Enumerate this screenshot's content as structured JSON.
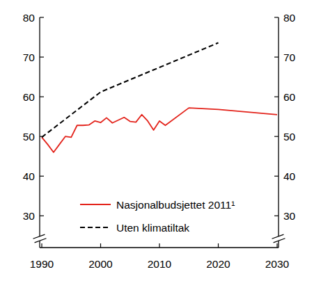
{
  "chart_data": {
    "type": "line",
    "xlim": [
      1990,
      2030
    ],
    "xticks": [
      1990,
      2000,
      2010,
      2020,
      2030
    ],
    "ylim": [
      22,
      80
    ],
    "yticks": [
      30,
      40,
      50,
      60,
      70,
      80
    ],
    "y2lim": [
      22,
      80
    ],
    "y2ticks": [
      30,
      40,
      50,
      60,
      70,
      80
    ],
    "legend": "lower left",
    "series": [
      {
        "name": "Nasjonalbudsjettet 2011¹",
        "color": "#e3231b",
        "line_style": "solid",
        "x": [
          1990,
          1991,
          1992,
          1993,
          1994,
          1995,
          1996,
          1997,
          1998,
          1999,
          2000,
          2001,
          2002,
          2003,
          2004,
          2005,
          2006,
          2007,
          2008,
          2009,
          2010,
          2011,
          2015,
          2020,
          2030
        ],
        "values": [
          49.8,
          48,
          46,
          48,
          50,
          49.8,
          52.8,
          52.8,
          52.9,
          53.9,
          53.5,
          54.7,
          53.4,
          54.1,
          54.8,
          53.8,
          53.6,
          55.5,
          53.9,
          51.6,
          53.9,
          52.8,
          57.2,
          56.8,
          55.5
        ]
      },
      {
        "name": "Uten klimatiltak",
        "color": "#000000",
        "line_style": "dashed",
        "x": [
          1990,
          2000,
          2020
        ],
        "values": [
          49.8,
          61.2,
          73.6
        ]
      }
    ]
  }
}
